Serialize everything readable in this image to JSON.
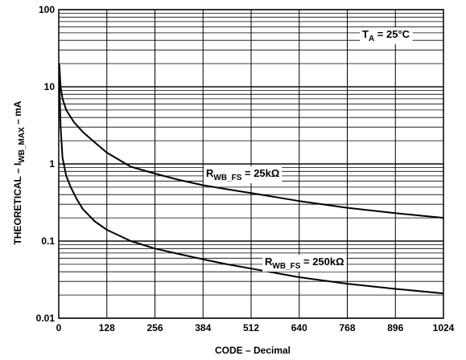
{
  "chart_data": {
    "type": "line",
    "title": "",
    "xlabel": "CODE – Decimal",
    "ylabel": {
      "prefix": "THEORETICAL – I",
      "sub": "WB_MAX",
      "suffix": " – mA"
    },
    "xlim": [
      0,
      1024
    ],
    "ylim": [
      0.01,
      100
    ],
    "yscale": "log",
    "grid": true,
    "xticks": [
      0,
      128,
      256,
      384,
      512,
      640,
      768,
      896,
      1024
    ],
    "yticks": [
      0.01,
      0.1,
      1,
      10,
      100
    ],
    "ytick_labels": [
      "0.01",
      "0.1",
      "1",
      "10",
      "100"
    ],
    "series": [
      {
        "name": "R_WB_FS = 25kΩ",
        "label": {
          "main": "R",
          "sub": "WB_FS",
          "rest": " = 25kΩ"
        },
        "x": [
          1,
          2,
          5,
          10,
          20,
          40,
          64,
          96,
          128,
          192,
          256,
          320,
          384,
          448,
          512,
          640,
          768,
          896,
          1024
        ],
        "y": [
          20,
          18,
          10,
          7,
          5,
          3.5,
          2.6,
          1.9,
          1.4,
          0.92,
          0.75,
          0.62,
          0.53,
          0.47,
          0.42,
          0.33,
          0.27,
          0.23,
          0.2
        ]
      },
      {
        "name": "R_WB_FS = 250kΩ",
        "label": {
          "main": "R",
          "sub": "WB_FS",
          "rest": " = 250kΩ"
        },
        "x": [
          1,
          2,
          5,
          10,
          20,
          32,
          48,
          64,
          96,
          128,
          192,
          256,
          320,
          384,
          448,
          512,
          640,
          768,
          896,
          1024
        ],
        "y": [
          20,
          10,
          3,
          1.2,
          0.7,
          0.5,
          0.35,
          0.26,
          0.18,
          0.14,
          0.1,
          0.08,
          0.068,
          0.058,
          0.05,
          0.044,
          0.034,
          0.028,
          0.024,
          0.021
        ]
      }
    ],
    "annotations": [
      {
        "main": "T",
        "sub": "A",
        "rest": " = 25°C"
      }
    ]
  }
}
